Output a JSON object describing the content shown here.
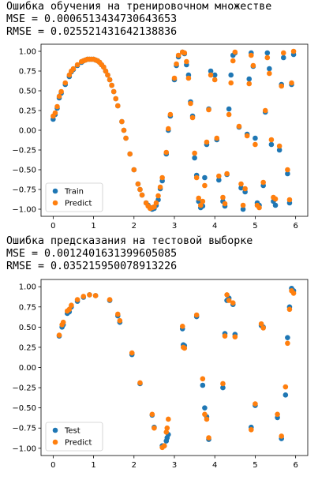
{
  "outputs": [
    {
      "title": "Ошибка обучения на тренировочном множестве",
      "mse": "MSE = 0.0006513434730643653",
      "rmse": "RMSE = 0.025521431642138836"
    },
    {
      "title": "Ошибка предсказания на тестовой выборке",
      "mse": "MSE = 0.0012401631399605085",
      "rmse": "RMSE = 0.035215950078913226"
    }
  ],
  "colors": {
    "actual": "#1f77b4",
    "predict": "#ff7f0e"
  },
  "chart_data": [
    {
      "type": "scatter",
      "title": "",
      "xlabel": "",
      "ylabel": "",
      "xlim": [
        -0.3,
        6.3
      ],
      "ylim": [
        -1.09,
        1.09
      ],
      "xticks": [
        0,
        1,
        2,
        3,
        4,
        5,
        6
      ],
      "yticks": [
        -1.0,
        -0.75,
        -0.5,
        -0.25,
        0.0,
        0.25,
        0.5,
        0.75,
        1.0
      ],
      "ytick_labels": [
        "−1.00",
        "−0.75",
        "−0.50",
        "−0.25",
        "0.00",
        "0.25",
        "0.50",
        "0.75",
        "1.00"
      ],
      "legend": {
        "position": "lower-left",
        "entries": [
          "Train",
          "Predict"
        ]
      },
      "series": [
        {
          "name": "Train",
          "x": [
            0.0,
            0.05,
            0.1,
            0.15,
            0.2,
            0.3,
            0.4,
            0.45,
            0.5,
            0.6,
            0.7,
            0.75,
            0.8,
            0.85,
            0.9,
            0.95,
            1.0,
            1.05,
            1.1,
            1.15,
            1.2,
            1.25,
            1.3,
            1.35,
            1.4,
            1.45,
            1.5,
            1.55,
            1.6,
            1.7,
            1.75,
            1.8,
            1.9,
            2.0,
            2.1,
            2.15,
            2.2,
            2.3,
            2.35,
            2.4,
            2.45,
            2.5,
            2.55,
            2.6,
            2.65,
            2.7,
            2.8,
            2.85,
            2.9,
            3.0,
            3.05,
            3.1,
            3.2,
            3.25,
            3.3,
            3.35,
            3.4,
            3.45,
            3.5,
            3.55,
            3.6,
            3.65,
            3.7,
            3.75,
            3.8,
            3.85,
            3.9,
            4.0,
            4.05,
            4.1,
            4.2,
            4.25,
            4.3,
            4.35,
            4.4,
            4.45,
            4.5,
            4.6,
            4.65,
            4.7,
            4.75,
            4.8,
            4.85,
            4.9,
            4.95,
            5.0,
            5.05,
            5.1,
            5.2,
            5.25,
            5.3,
            5.35,
            5.4,
            5.45,
            5.5,
            5.6,
            5.65,
            5.7,
            5.8,
            5.85,
            5.9,
            5.95
          ],
          "y": [
            0.14,
            0.2,
            0.28,
            0.41,
            0.47,
            0.58,
            0.68,
            0.74,
            0.77,
            0.82,
            0.86,
            0.88,
            0.89,
            0.9,
            0.9,
            0.9,
            0.9,
            0.89,
            0.88,
            0.86,
            0.83,
            0.8,
            0.75,
            0.7,
            0.64,
            0.57,
            0.49,
            0.4,
            0.31,
            0.11,
            0.0,
            -0.1,
            -0.3,
            -0.5,
            -0.68,
            -0.75,
            -0.82,
            -0.92,
            -0.95,
            -0.98,
            -1.0,
            -0.99,
            -0.95,
            -0.88,
            -0.74,
            -0.64,
            -0.3,
            0.0,
            0.18,
            0.64,
            0.82,
            0.93,
            0.99,
            0.97,
            0.83,
            0.7,
            0.36,
            0.18,
            -0.35,
            -0.57,
            -0.9,
            -0.98,
            -0.96,
            -0.6,
            -0.18,
            0.27,
            0.75,
            0.7,
            -0.12,
            -0.63,
            -0.9,
            -0.96,
            -0.56,
            0.27,
            0.7,
            0.95,
            0.98,
            0.04,
            -0.73,
            -1.0,
            -0.78,
            -0.05,
            0.65,
            0.98,
            0.81,
            -0.1,
            -0.92,
            -0.95,
            -0.7,
            0.23,
            0.98,
            0.78,
            -0.18,
            -0.9,
            -0.95,
            -0.25,
            0.58,
            0.92,
            -0.55,
            -0.92,
            0.58,
            0.96
          ]
        },
        {
          "name": "Predict",
          "x": [
            0.0,
            0.05,
            0.1,
            0.15,
            0.2,
            0.3,
            0.4,
            0.45,
            0.5,
            0.6,
            0.7,
            0.75,
            0.8,
            0.85,
            0.9,
            0.95,
            1.0,
            1.05,
            1.1,
            1.15,
            1.2,
            1.25,
            1.3,
            1.35,
            1.4,
            1.45,
            1.5,
            1.55,
            1.6,
            1.7,
            1.75,
            1.8,
            1.9,
            2.0,
            2.1,
            2.15,
            2.2,
            2.3,
            2.35,
            2.4,
            2.45,
            2.5,
            2.55,
            2.6,
            2.65,
            2.7,
            2.8,
            2.85,
            2.9,
            3.0,
            3.05,
            3.1,
            3.2,
            3.25,
            3.3,
            3.35,
            3.4,
            3.45,
            3.5,
            3.55,
            3.6,
            3.65,
            3.7,
            3.75,
            3.8,
            3.85,
            3.9,
            4.0,
            4.05,
            4.1,
            4.2,
            4.25,
            4.3,
            4.35,
            4.4,
            4.45,
            4.5,
            4.6,
            4.65,
            4.7,
            4.75,
            4.8,
            4.85,
            4.9,
            4.95,
            5.0,
            5.05,
            5.1,
            5.2,
            5.25,
            5.3,
            5.35,
            5.4,
            5.45,
            5.5,
            5.6,
            5.65,
            5.7,
            5.8,
            5.85,
            5.9,
            5.95
          ],
          "y": [
            0.18,
            0.22,
            0.3,
            0.43,
            0.49,
            0.6,
            0.7,
            0.75,
            0.78,
            0.83,
            0.87,
            0.88,
            0.89,
            0.9,
            0.9,
            0.9,
            0.9,
            0.89,
            0.88,
            0.86,
            0.83,
            0.8,
            0.75,
            0.7,
            0.64,
            0.57,
            0.49,
            0.4,
            0.31,
            0.11,
            0.0,
            -0.1,
            -0.3,
            -0.5,
            -0.68,
            -0.75,
            -0.82,
            -0.92,
            -0.96,
            -0.99,
            -0.98,
            -0.97,
            -0.92,
            -0.83,
            -0.72,
            -0.6,
            -0.28,
            0.02,
            0.2,
            0.66,
            0.84,
            0.95,
            0.99,
            0.98,
            0.87,
            0.66,
            0.34,
            0.16,
            -0.29,
            -0.6,
            -0.86,
            -0.95,
            -0.9,
            -0.7,
            -0.15,
            0.26,
            0.7,
            0.64,
            -0.1,
            -0.58,
            -0.85,
            -0.93,
            -0.55,
            0.2,
            0.6,
            0.88,
            0.99,
            0.05,
            -0.68,
            -0.95,
            -0.74,
            -0.07,
            0.59,
            0.95,
            0.82,
            -0.18,
            -0.95,
            -0.98,
            -0.66,
            0.25,
            0.92,
            0.72,
            -0.12,
            -0.85,
            -0.87,
            -0.2,
            0.56,
            0.98,
            -0.5,
            -0.88,
            0.6,
            1.0
          ]
        }
      ]
    },
    {
      "type": "scatter",
      "title": "",
      "xlabel": "",
      "ylabel": "",
      "xlim": [
        -0.3,
        6.3
      ],
      "ylim": [
        -1.09,
        1.09
      ],
      "xticks": [
        0,
        1,
        2,
        3,
        4,
        5,
        6
      ],
      "yticks": [
        -1.0,
        -0.75,
        -0.5,
        -0.25,
        0.0,
        0.25,
        0.5,
        0.75,
        1.0
      ],
      "ytick_labels": [
        "−1.00",
        "−0.75",
        "−0.50",
        "−0.25",
        "0.00",
        "0.25",
        "0.50",
        "0.75",
        "1.00"
      ],
      "legend": {
        "position": "lower-left",
        "entries": [
          "Test",
          "Predict"
        ]
      },
      "series": [
        {
          "name": "Test",
          "x": [
            0.15,
            0.22,
            0.25,
            0.35,
            0.4,
            0.45,
            0.6,
            0.75,
            0.9,
            1.05,
            1.4,
            1.6,
            1.65,
            1.95,
            2.15,
            2.45,
            2.5,
            2.7,
            2.75,
            2.8,
            2.82,
            2.85,
            3.2,
            3.22,
            3.25,
            3.55,
            3.7,
            3.75,
            3.8,
            3.85,
            4.2,
            4.25,
            4.3,
            4.35,
            4.45,
            4.5,
            4.9,
            5.0,
            5.15,
            5.2,
            5.55,
            5.65,
            5.75,
            5.8,
            5.85,
            5.9,
            5.95
          ],
          "y": [
            0.39,
            0.5,
            0.53,
            0.67,
            0.69,
            0.75,
            0.82,
            0.87,
            0.9,
            0.89,
            0.83,
            0.64,
            0.56,
            0.16,
            -0.2,
            -0.59,
            -0.74,
            -0.97,
            -0.97,
            -0.91,
            -0.87,
            -0.83,
            0.48,
            0.28,
            0.27,
            0.63,
            -0.22,
            -0.5,
            -0.61,
            -0.89,
            -0.25,
            0.42,
            0.83,
            0.86,
            0.78,
            0.41,
            -0.74,
            -0.47,
            0.52,
            0.5,
            -0.62,
            -0.88,
            -0.34,
            0.37,
            0.75,
            0.98,
            0.95
          ]
        },
        {
          "name": "Predict",
          "x": [
            0.15,
            0.22,
            0.25,
            0.35,
            0.4,
            0.45,
            0.6,
            0.75,
            0.9,
            1.05,
            1.4,
            1.6,
            1.65,
            1.95,
            2.15,
            2.45,
            2.5,
            2.7,
            2.75,
            2.8,
            2.82,
            2.85,
            3.2,
            3.22,
            3.25,
            3.55,
            3.7,
            3.75,
            3.8,
            3.85,
            4.2,
            4.25,
            4.3,
            4.35,
            4.45,
            4.5,
            4.9,
            5.0,
            5.15,
            5.2,
            5.55,
            5.65,
            5.75,
            5.8,
            5.85,
            5.9,
            5.95
          ],
          "y": [
            0.4,
            0.53,
            0.56,
            0.7,
            0.72,
            0.77,
            0.84,
            0.88,
            0.9,
            0.89,
            0.84,
            0.66,
            0.58,
            0.18,
            -0.19,
            -0.58,
            -0.75,
            -0.99,
            -0.97,
            -0.8,
            -0.75,
            -0.64,
            0.51,
            0.25,
            0.24,
            0.65,
            -0.14,
            -0.58,
            -0.64,
            -0.87,
            -0.2,
            0.39,
            0.9,
            0.83,
            0.8,
            0.38,
            -0.77,
            -0.45,
            0.54,
            0.49,
            -0.58,
            -0.85,
            -0.24,
            0.3,
            0.72,
            0.95,
            0.92
          ]
        }
      ]
    }
  ]
}
